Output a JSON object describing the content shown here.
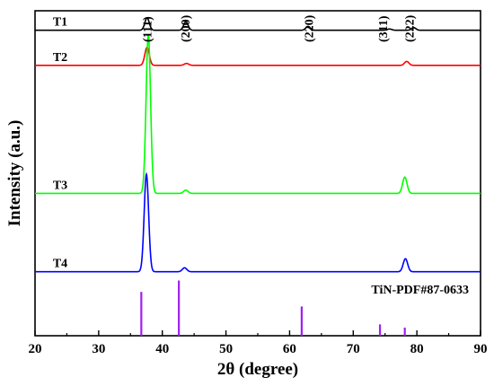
{
  "chart_data": {
    "type": "line",
    "xlabel": "2θ (degree)",
    "ylabel": "Intensity (a.u.)",
    "xlim": [
      20,
      90
    ],
    "x_ticks": [
      "20",
      "30",
      "40",
      "50",
      "60",
      "70",
      "80",
      "90"
    ],
    "grid": false,
    "peak_labels": [
      {
        "text": "(111)",
        "x": 37.6
      },
      {
        "text": "(200)",
        "x": 43.6
      },
      {
        "text": "(220)",
        "x": 63.0
      },
      {
        "text": "(311)",
        "x": 74.6
      },
      {
        "text": "(222)",
        "x": 78.8
      }
    ],
    "series": [
      {
        "name": "T1",
        "color": "#000000",
        "baseline": 0.94,
        "peaks": [
          {
            "x": 37.6,
            "height": 0.038
          },
          {
            "x": 43.7,
            "height": 0.026
          },
          {
            "x": 62.9,
            "height": 0.012
          },
          {
            "x": 75.7,
            "height": 0.004
          },
          {
            "x": 79.5,
            "height": 0.008
          }
        ]
      },
      {
        "name": "T2",
        "color": "#ff0000",
        "baseline": 0.832,
        "peaks": [
          {
            "x": 37.6,
            "height": 0.055
          },
          {
            "x": 43.8,
            "height": 0.006
          },
          {
            "x": 78.4,
            "height": 0.012
          }
        ]
      },
      {
        "name": "T3",
        "color": "#00ff00",
        "baseline": 0.438,
        "peaks": [
          {
            "x": 37.8,
            "height": 0.49
          },
          {
            "x": 43.7,
            "height": 0.01
          },
          {
            "x": 78.1,
            "height": 0.05
          }
        ]
      },
      {
        "name": "T4",
        "color": "#0000ff",
        "baseline": 0.197,
        "peaks": [
          {
            "x": 37.5,
            "height": 0.3
          },
          {
            "x": 43.5,
            "height": 0.012
          },
          {
            "x": 78.2,
            "height": 0.04
          }
        ]
      }
    ],
    "reference": {
      "label": "TiN-PDF#87-0633",
      "color": "#a020f0",
      "lines": [
        {
          "x": 36.7,
          "height": 0.135
        },
        {
          "x": 42.6,
          "height": 0.17
        },
        {
          "x": 61.9,
          "height": 0.09
        },
        {
          "x": 74.2,
          "height": 0.035
        },
        {
          "x": 78.1,
          "height": 0.025
        }
      ]
    }
  }
}
